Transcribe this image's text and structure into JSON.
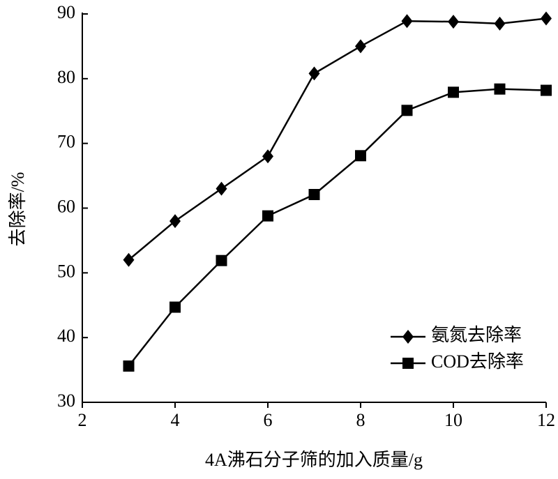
{
  "chart_data": {
    "type": "line",
    "x_label": "4A沸石分子筛的加入质量/g",
    "y_label": "去除率/%",
    "x": [
      3,
      4,
      5,
      6,
      7,
      8,
      9,
      10,
      11,
      12
    ],
    "series": [
      {
        "name": "氨氮去除率",
        "color": "#000000",
        "marker": "diamond",
        "values": [
          52,
          58,
          63,
          68,
          80.8,
          85,
          88.9,
          88.8,
          88.5,
          89.3
        ]
      },
      {
        "name": "COD去除率",
        "color": "#000000",
        "marker": "square",
        "values": [
          35.6,
          44.7,
          51.9,
          58.8,
          62.1,
          68.1,
          75.1,
          77.9,
          78.4,
          78.2
        ]
      }
    ],
    "xlim": [
      2,
      12
    ],
    "xticks": [
      2,
      4,
      6,
      8,
      10,
      12
    ],
    "ylim": [
      30,
      90
    ],
    "yticks": [
      30,
      40,
      50,
      60,
      70,
      80,
      90
    ],
    "legend": "lower right"
  }
}
